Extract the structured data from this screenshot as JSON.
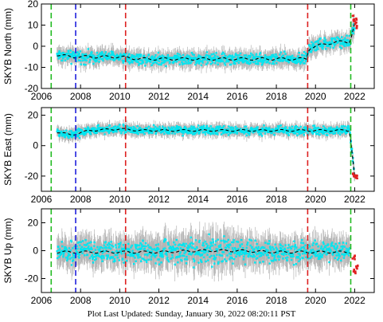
{
  "footer": "Plot Last Updated:   Sunday, January 30, 2022 08:20:11 PST",
  "colors": {
    "data": "#00e5f0",
    "error_bars": "#b4b4b4",
    "model": "#000000",
    "outliers": "#e02020",
    "green_lines": "#22bb22",
    "blue_lines": "#2020dd",
    "red_lines": "#dd2020"
  },
  "chart_data": [
    {
      "type": "scatter",
      "station": "SKYB",
      "ylabel": "SKYB North (mm)",
      "xlim": [
        2006,
        2023
      ],
      "ylim": [
        -20,
        20
      ],
      "xticks": [
        2006,
        2008,
        2010,
        2012,
        2014,
        2016,
        2018,
        2020,
        2022
      ],
      "yticks": [
        -20,
        -10,
        0,
        10,
        20
      ],
      "vlines": [
        {
          "x": 2006.5,
          "style": "green-dashed"
        },
        {
          "x": 2007.75,
          "style": "blue-dashed"
        },
        {
          "x": 2010.3,
          "style": "red-dashed"
        },
        {
          "x": 2019.6,
          "style": "red-dashed"
        },
        {
          "x": 2021.8,
          "style": "green-dashed"
        }
      ],
      "series": [
        {
          "role": "data",
          "x": [
            2006.8,
            2007.5,
            2008.5,
            2010.0,
            2011.0,
            2012.0,
            2013.0,
            2014.0,
            2015.0,
            2016.0,
            2017.0,
            2018.0,
            2019.0,
            2019.55,
            2019.65,
            2020.0,
            2020.5,
            2021.0,
            2021.5,
            2021.75,
            2022.0
          ],
          "y": [
            -4,
            -5,
            -5,
            -5,
            -6,
            -6,
            -6,
            -6,
            -6,
            -6,
            -6,
            -6,
            -6,
            -6,
            -1,
            0,
            1,
            2,
            2,
            2,
            11
          ],
          "err": [
            3,
            3,
            3,
            3,
            3,
            3,
            3,
            3,
            3,
            3,
            3,
            3,
            3,
            3,
            3,
            3,
            3,
            3,
            3,
            3,
            4
          ]
        },
        {
          "role": "outliers",
          "x": [
            2021.95,
            2022.05,
            2022.1
          ],
          "y": [
            13,
            12,
            10
          ]
        }
      ]
    },
    {
      "type": "scatter",
      "station": "SKYB",
      "ylabel": "SKYB East (mm)",
      "xlim": [
        2006,
        2023
      ],
      "ylim": [
        -30,
        25
      ],
      "xticks": [
        2006,
        2008,
        2010,
        2012,
        2014,
        2016,
        2018,
        2020,
        2022
      ],
      "yticks": [
        -20,
        0,
        20
      ],
      "vlines": [
        {
          "x": 2006.5,
          "style": "green-dashed"
        },
        {
          "x": 2007.75,
          "style": "blue-dashed"
        },
        {
          "x": 2010.3,
          "style": "red-dashed"
        },
        {
          "x": 2019.6,
          "style": "red-dashed"
        },
        {
          "x": 2021.8,
          "style": "green-dashed"
        }
      ],
      "series": [
        {
          "role": "data",
          "x": [
            2006.8,
            2007.5,
            2008.5,
            2010.0,
            2011.0,
            2012.0,
            2013.0,
            2014.0,
            2015.0,
            2016.0,
            2017.0,
            2018.0,
            2019.0,
            2020.0,
            2021.0,
            2021.75,
            2022.0
          ],
          "y": [
            9,
            7,
            10,
            11,
            10,
            10,
            10,
            10,
            10,
            10,
            10,
            10,
            10,
            10,
            10,
            10,
            -20
          ],
          "err": [
            3,
            3,
            3,
            3,
            3,
            3,
            3,
            3,
            3,
            3,
            3,
            3,
            3,
            3,
            3,
            3,
            3
          ]
        },
        {
          "role": "outliers",
          "x": [
            2021.95,
            2022.05,
            2022.1
          ],
          "y": [
            -19,
            -21,
            -20
          ]
        }
      ]
    },
    {
      "type": "scatter",
      "station": "SKYB",
      "ylabel": "SKYB Up (mm)",
      "xlim": [
        2006,
        2023
      ],
      "ylim": [
        -30,
        30
      ],
      "xticks": [
        2006,
        2008,
        2010,
        2012,
        2014,
        2016,
        2018,
        2020,
        2022
      ],
      "yticks": [
        -20,
        0,
        20
      ],
      "vlines": [
        {
          "x": 2006.5,
          "style": "green-dashed"
        },
        {
          "x": 2007.75,
          "style": "blue-dashed"
        },
        {
          "x": 2010.3,
          "style": "red-dashed"
        },
        {
          "x": 2019.6,
          "style": "red-dashed"
        },
        {
          "x": 2021.8,
          "style": "green-dashed"
        }
      ],
      "series": [
        {
          "role": "data",
          "x": [
            2006.8,
            2008.0,
            2010.0,
            2012.0,
            2014.0,
            2015.0,
            2016.0,
            2018.0,
            2020.0,
            2021.75
          ],
          "y": [
            -1,
            -1,
            -1,
            -1,
            0,
            0,
            0,
            -1,
            -1,
            -1
          ],
          "err": [
            8,
            8,
            8,
            9,
            10,
            10,
            9,
            8,
            8,
            8
          ]
        },
        {
          "role": "outliers",
          "x": [
            2021.95,
            2022.0,
            2022.1
          ],
          "y": [
            -5,
            -15,
            -12
          ]
        }
      ]
    }
  ]
}
